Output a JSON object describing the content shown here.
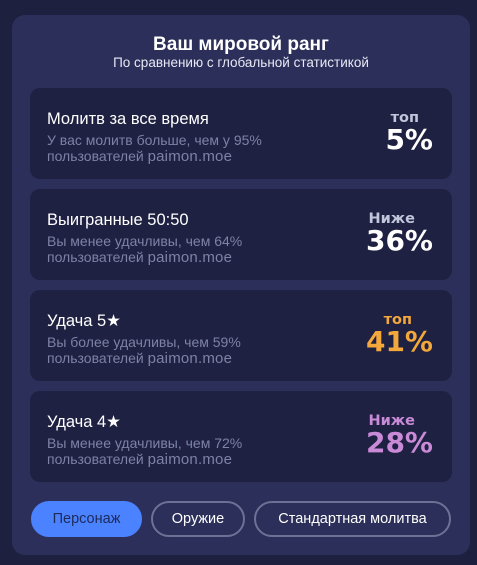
{
  "header": {
    "title": "Ваш мировой ранг",
    "subtitle": "По сравнению с глобальной статистикой"
  },
  "cards": [
    {
      "title": "Молитв за все время",
      "desc_line1": "У вас молитв больше, чем у 95%",
      "desc_line2": "пользователей",
      "brand": "paimon.moe",
      "rank_label": "топ",
      "rank_value": "5%",
      "label_color": "#c2c6db",
      "value_color": "#ffffff"
    },
    {
      "title": "Выигранные 50:50",
      "desc_line1": "Вы менее удачливы, чем 64%",
      "desc_line2": "пользователей",
      "brand": "paimon.moe",
      "rank_label": "Ниже",
      "rank_value": "36%",
      "label_color": "#c2c6db",
      "value_color": "#ffffff"
    },
    {
      "title": "Удача 5★",
      "desc_line1": "Вы более удачливы, чем 59%",
      "desc_line2": "пользователей",
      "brand": "paimon.moe",
      "rank_label": "топ",
      "rank_value": "41%",
      "label_color": "#f4a83c",
      "value_color": "#f4a83c"
    },
    {
      "title": "Удача 4★",
      "desc_line1": "Вы менее удачливы, чем 72%",
      "desc_line2": "пользователей",
      "brand": "paimon.moe",
      "rank_label": "Ниже",
      "rank_value": "28%",
      "label_color": "#c98ad8",
      "value_color": "#c98ad8"
    }
  ],
  "tabs": {
    "character": "Персонаж",
    "weapon": "Оружие",
    "standard": "Стандартная молитва"
  },
  "colors": {
    "background": "#1e2040",
    "panel": "#2c2f59",
    "card": "#1e2141",
    "accent": "#4a82ff",
    "muted_text": "#7d82a6"
  }
}
